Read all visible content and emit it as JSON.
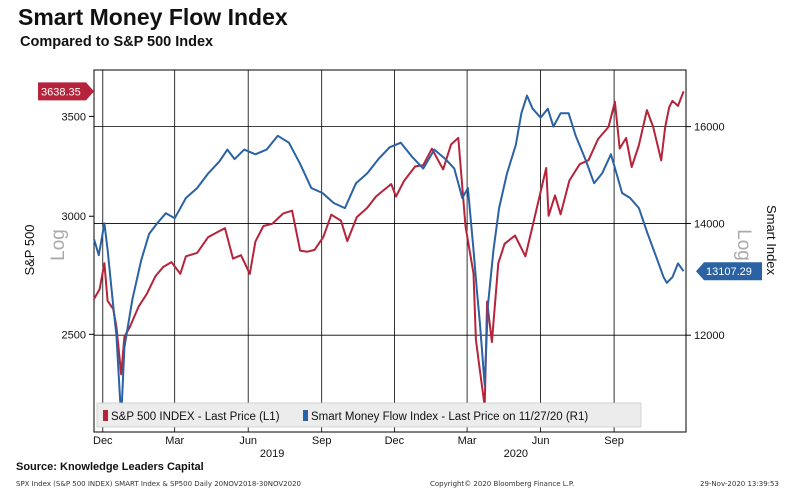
{
  "header": {
    "title": "Smart Money Flow Index",
    "subtitle": "Compared to S&P 500 Index"
  },
  "footer": {
    "source": "Source: Knowledge Leaders Capital",
    "left_note": "SPX Index (S&P 500 INDEX) SMART Index & SP500  Daily 20NOV2018-30NOV2020",
    "center_note": "Copyright© 2020 Bloomberg Finance L.P.",
    "right_note": "29-Nov-2020 13:39:53"
  },
  "colors": {
    "sp500": "#b5243a",
    "smart": "#2a62a3",
    "grid": "#000000",
    "plot_bg": "#ffffff",
    "log_watermark": "#aaaaaa"
  },
  "chart_data": {
    "type": "line",
    "x_range": [
      "2018-11-20",
      "2020-11-30"
    ],
    "left_axis": {
      "label": "S&P 500",
      "scale": "log",
      "watermark": "Log",
      "ylim": [
        2150,
        3760
      ],
      "ticks": [
        {
          "value": 2500,
          "label": "2500"
        },
        {
          "value": 3000,
          "label": "3000"
        },
        {
          "value": 3500,
          "label": "3500"
        }
      ]
    },
    "right_axis": {
      "label": "Smart Index",
      "scale": "log",
      "watermark": "Log",
      "ylim": [
        10500,
        17300
      ],
      "ticks": [
        {
          "value": 12000,
          "label": "12000"
        },
        {
          "value": 14000,
          "label": "14000"
        },
        {
          "value": 16000,
          "label": "16000"
        }
      ]
    },
    "x_ticks": [
      {
        "date": "2018-12-01",
        "label": "Dec"
      },
      {
        "date": "2019-03-01",
        "label": "Mar"
      },
      {
        "date": "2019-06-01",
        "label": "Jun"
      },
      {
        "date": "2019-09-01",
        "label": "Sep"
      },
      {
        "date": "2019-12-01",
        "label": "Dec"
      },
      {
        "date": "2020-03-01",
        "label": "Mar"
      },
      {
        "date": "2020-06-01",
        "label": "Jun"
      },
      {
        "date": "2020-09-01",
        "label": "Sep"
      }
    ],
    "year_labels": [
      {
        "date": "2019-07-01",
        "label": "2019"
      },
      {
        "date": "2020-05-01",
        "label": "2020"
      }
    ],
    "last_values": [
      {
        "series": "sp500",
        "label": "3638.35"
      },
      {
        "series": "smart",
        "label": "13107.29"
      }
    ],
    "series": [
      {
        "key": "sp500",
        "axis": "left",
        "name": "S&P 500 INDEX - Last Price (L1)",
        "points": [
          [
            "2018-11-20",
            2640
          ],
          [
            "2018-11-27",
            2680
          ],
          [
            "2018-12-03",
            2790
          ],
          [
            "2018-12-07",
            2633
          ],
          [
            "2018-12-14",
            2600
          ],
          [
            "2018-12-18",
            2530
          ],
          [
            "2018-12-24",
            2350
          ],
          [
            "2018-12-28",
            2490
          ],
          [
            "2019-01-04",
            2530
          ],
          [
            "2019-01-15",
            2610
          ],
          [
            "2019-01-25",
            2660
          ],
          [
            "2019-02-05",
            2735
          ],
          [
            "2019-02-15",
            2775
          ],
          [
            "2019-02-25",
            2795
          ],
          [
            "2019-03-08",
            2745
          ],
          [
            "2019-03-15",
            2820
          ],
          [
            "2019-03-29",
            2835
          ],
          [
            "2019-04-12",
            2905
          ],
          [
            "2019-04-25",
            2930
          ],
          [
            "2019-05-03",
            2945
          ],
          [
            "2019-05-13",
            2810
          ],
          [
            "2019-05-23",
            2825
          ],
          [
            "2019-06-03",
            2745
          ],
          [
            "2019-06-10",
            2885
          ],
          [
            "2019-06-20",
            2955
          ],
          [
            "2019-07-01",
            2965
          ],
          [
            "2019-07-15",
            3013
          ],
          [
            "2019-07-26",
            3026
          ],
          [
            "2019-08-05",
            2845
          ],
          [
            "2019-08-14",
            2840
          ],
          [
            "2019-08-23",
            2848
          ],
          [
            "2019-09-03",
            2905
          ],
          [
            "2019-09-13",
            3007
          ],
          [
            "2019-09-25",
            2980
          ],
          [
            "2019-10-03",
            2887
          ],
          [
            "2019-10-15",
            2996
          ],
          [
            "2019-10-28",
            3039
          ],
          [
            "2019-11-08",
            3093
          ],
          [
            "2019-11-27",
            3153
          ],
          [
            "2019-12-03",
            3093
          ],
          [
            "2019-12-13",
            3168
          ],
          [
            "2019-12-27",
            3240
          ],
          [
            "2020-01-06",
            3246
          ],
          [
            "2020-01-17",
            3330
          ],
          [
            "2020-01-31",
            3225
          ],
          [
            "2020-02-10",
            3352
          ],
          [
            "2020-02-19",
            3386
          ],
          [
            "2020-02-28",
            2954
          ],
          [
            "2020-03-09",
            2746
          ],
          [
            "2020-03-12",
            2480
          ],
          [
            "2020-03-16",
            2386
          ],
          [
            "2020-03-23",
            2237
          ],
          [
            "2020-03-26",
            2630
          ],
          [
            "2020-04-01",
            2470
          ],
          [
            "2020-04-09",
            2790
          ],
          [
            "2020-04-17",
            2875
          ],
          [
            "2020-04-30",
            2912
          ],
          [
            "2020-05-13",
            2820
          ],
          [
            "2020-05-22",
            2955
          ],
          [
            "2020-06-08",
            3232
          ],
          [
            "2020-06-11",
            3002
          ],
          [
            "2020-06-19",
            3098
          ],
          [
            "2020-06-26",
            3009
          ],
          [
            "2020-07-07",
            3170
          ],
          [
            "2020-07-20",
            3251
          ],
          [
            "2020-07-31",
            3271
          ],
          [
            "2020-08-12",
            3380
          ],
          [
            "2020-08-25",
            3443
          ],
          [
            "2020-09-02",
            3580
          ],
          [
            "2020-09-08",
            3331
          ],
          [
            "2020-09-16",
            3385
          ],
          [
            "2020-09-23",
            3237
          ],
          [
            "2020-10-02",
            3348
          ],
          [
            "2020-10-12",
            3534
          ],
          [
            "2020-10-20",
            3443
          ],
          [
            "2020-10-30",
            3270
          ],
          [
            "2020-11-04",
            3443
          ],
          [
            "2020-11-09",
            3550
          ],
          [
            "2020-11-13",
            3585
          ],
          [
            "2020-11-20",
            3557
          ],
          [
            "2020-11-27",
            3638
          ]
        ]
      },
      {
        "key": "smart",
        "axis": "right",
        "name": "Smart Money Flow Index - Last Price on 11/27/20 (R1)",
        "points": [
          [
            "2018-11-20",
            13700
          ],
          [
            "2018-11-26",
            13400
          ],
          [
            "2018-12-03",
            14000
          ],
          [
            "2018-12-07",
            13500
          ],
          [
            "2018-12-14",
            12500
          ],
          [
            "2018-12-18",
            12000
          ],
          [
            "2018-12-24",
            10700
          ],
          [
            "2018-12-28",
            11800
          ],
          [
            "2019-01-07",
            12600
          ],
          [
            "2019-01-18",
            13300
          ],
          [
            "2019-01-28",
            13800
          ],
          [
            "2019-02-07",
            14000
          ],
          [
            "2019-02-18",
            14200
          ],
          [
            "2019-03-01",
            14100
          ],
          [
            "2019-03-15",
            14500
          ],
          [
            "2019-03-29",
            14700
          ],
          [
            "2019-04-12",
            15000
          ],
          [
            "2019-04-26",
            15250
          ],
          [
            "2019-05-06",
            15500
          ],
          [
            "2019-05-15",
            15300
          ],
          [
            "2019-05-27",
            15500
          ],
          [
            "2019-06-10",
            15400
          ],
          [
            "2019-06-24",
            15500
          ],
          [
            "2019-07-08",
            15800
          ],
          [
            "2019-07-22",
            15650
          ],
          [
            "2019-08-05",
            15200
          ],
          [
            "2019-08-19",
            14700
          ],
          [
            "2019-09-02",
            14600
          ],
          [
            "2019-09-16",
            14400
          ],
          [
            "2019-09-30",
            14300
          ],
          [
            "2019-10-14",
            14800
          ],
          [
            "2019-10-28",
            15000
          ],
          [
            "2019-11-11",
            15300
          ],
          [
            "2019-11-25",
            15550
          ],
          [
            "2019-12-09",
            15650
          ],
          [
            "2019-12-23",
            15350
          ],
          [
            "2020-01-06",
            15100
          ],
          [
            "2020-01-20",
            15500
          ],
          [
            "2020-02-03",
            15300
          ],
          [
            "2020-02-14",
            15100
          ],
          [
            "2020-02-24",
            14500
          ],
          [
            "2020-03-02",
            14700
          ],
          [
            "2020-03-09",
            13500
          ],
          [
            "2020-03-13",
            12800
          ],
          [
            "2020-03-17",
            12200
          ],
          [
            "2020-03-23",
            11200
          ],
          [
            "2020-03-27",
            12500
          ],
          [
            "2020-04-03",
            13500
          ],
          [
            "2020-04-10",
            14300
          ],
          [
            "2020-04-20",
            15000
          ],
          [
            "2020-05-01",
            15600
          ],
          [
            "2020-05-08",
            16300
          ],
          [
            "2020-05-15",
            16700
          ],
          [
            "2020-05-22",
            16400
          ],
          [
            "2020-06-01",
            16200
          ],
          [
            "2020-06-10",
            16400
          ],
          [
            "2020-06-17",
            16000
          ],
          [
            "2020-06-26",
            16300
          ],
          [
            "2020-07-06",
            16300
          ],
          [
            "2020-07-15",
            15800
          ],
          [
            "2020-07-27",
            15300
          ],
          [
            "2020-08-07",
            14800
          ],
          [
            "2020-08-17",
            15000
          ],
          [
            "2020-08-28",
            15400
          ],
          [
            "2020-09-04",
            15000
          ],
          [
            "2020-09-11",
            14600
          ],
          [
            "2020-09-21",
            14500
          ],
          [
            "2020-10-02",
            14300
          ],
          [
            "2020-10-13",
            13800
          ],
          [
            "2020-10-23",
            13400
          ],
          [
            "2020-11-02",
            13000
          ],
          [
            "2020-11-06",
            12900
          ],
          [
            "2020-11-13",
            13000
          ],
          [
            "2020-11-20",
            13250
          ],
          [
            "2020-11-27",
            13107
          ]
        ]
      }
    ]
  }
}
